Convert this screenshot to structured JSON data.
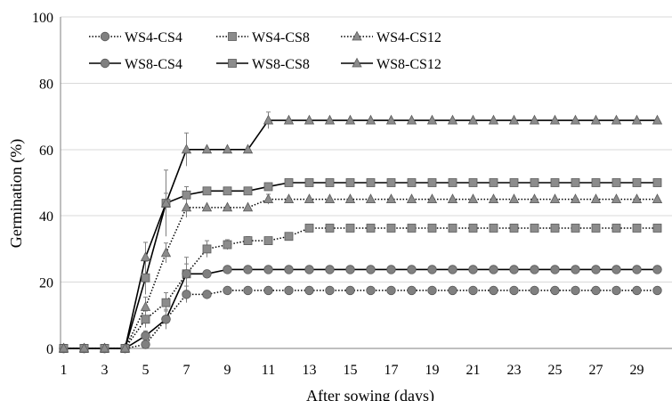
{
  "chart_data": {
    "type": "line",
    "title": "",
    "xlabel": "After sowing (days)",
    "ylabel": "Germination (%)",
    "xlim": [
      0.5,
      30.6
    ],
    "ylim": [
      0,
      100
    ],
    "yticks": [
      0,
      20,
      40,
      60,
      80,
      100
    ],
    "xticks": [
      1,
      3,
      5,
      7,
      9,
      11,
      13,
      15,
      17,
      19,
      21,
      23,
      25,
      27,
      29
    ],
    "grid": "horizontal",
    "legend_position": "top-left",
    "x": [
      1,
      2,
      3,
      4,
      5,
      6,
      7,
      8,
      9,
      10,
      11,
      12,
      13,
      14,
      15,
      16,
      17,
      18,
      19,
      20,
      21,
      22,
      23,
      24,
      25,
      26,
      27,
      28,
      29,
      30
    ],
    "series": [
      {
        "name": "WS4-CS4",
        "marker": "circle",
        "line": "dotted",
        "color": "#808080",
        "values": [
          0,
          0,
          0,
          0,
          1.2,
          8.8,
          16.3,
          16.3,
          17.5,
          17.5,
          17.5,
          17.5,
          17.5,
          17.5,
          17.5,
          17.5,
          17.5,
          17.5,
          17.5,
          17.5,
          17.5,
          17.5,
          17.5,
          17.5,
          17.5,
          17.5,
          17.5,
          17.5,
          17.5,
          17.5
        ],
        "errors": [
          0,
          0,
          0,
          0,
          0.8,
          2.5,
          2.5,
          0,
          0,
          0,
          0,
          0,
          0,
          0,
          0,
          0,
          0,
          0,
          0,
          0,
          0,
          0,
          0,
          0,
          0,
          0,
          0,
          0,
          0,
          0
        ]
      },
      {
        "name": "WS4-CS8",
        "marker": "square",
        "line": "dotted",
        "color": "#8c8c8c",
        "values": [
          0,
          0,
          0,
          0,
          8.8,
          13.8,
          22.5,
          30,
          31.3,
          32.5,
          32.5,
          33.8,
          36.3,
          36.3,
          36.3,
          36.3,
          36.3,
          36.3,
          36.3,
          36.3,
          36.3,
          36.3,
          36.3,
          36.3,
          36.3,
          36.3,
          36.3,
          36.3,
          36.3,
          36.3
        ],
        "errors": [
          0,
          0,
          0,
          0,
          2.5,
          3,
          3,
          2.5,
          1.5,
          1.2,
          0,
          0,
          0,
          0,
          0,
          0,
          0,
          0,
          0,
          0,
          0,
          0,
          0,
          0,
          0,
          0,
          0,
          0,
          0,
          0
        ]
      },
      {
        "name": "WS4-CS12",
        "marker": "triangle",
        "line": "dotted",
        "color": "#8c8c8c",
        "values": [
          0,
          0,
          0,
          0,
          12.5,
          28.8,
          42.5,
          42.5,
          42.5,
          42.5,
          45,
          45,
          45,
          45,
          45,
          45,
          45,
          45,
          45,
          45,
          45,
          45,
          45,
          45,
          45,
          45,
          45,
          45,
          45,
          45
        ],
        "errors": [
          0,
          0,
          0,
          0,
          3,
          3,
          3,
          0,
          0,
          0,
          1.5,
          0,
          0,
          0,
          0,
          0,
          0,
          0,
          0,
          0,
          0,
          0,
          0,
          0,
          0,
          0,
          0,
          0,
          0,
          0
        ]
      },
      {
        "name": "WS8-CS4",
        "marker": "circle",
        "line": "solid",
        "color": "#808080",
        "values": [
          0,
          0,
          0,
          0,
          3.8,
          8.8,
          22.5,
          22.5,
          23.8,
          23.8,
          23.8,
          23.8,
          23.8,
          23.8,
          23.8,
          23.8,
          23.8,
          23.8,
          23.8,
          23.8,
          23.8,
          23.8,
          23.8,
          23.8,
          23.8,
          23.8,
          23.8,
          23.8,
          23.8,
          23.8
        ],
        "errors": [
          0,
          0,
          0,
          0,
          1.5,
          3,
          5,
          0,
          0,
          0,
          0,
          0,
          0,
          0,
          0,
          0,
          0,
          0,
          0,
          0,
          0,
          0,
          0,
          0,
          0,
          0,
          0,
          0,
          0,
          0
        ]
      },
      {
        "name": "WS8-CS8",
        "marker": "square",
        "line": "solid",
        "color": "#8c8c8c",
        "values": [
          0,
          0,
          0,
          0,
          21.3,
          43.8,
          46.3,
          47.5,
          47.5,
          47.5,
          48.8,
          50,
          50,
          50,
          50,
          50,
          50,
          50,
          50,
          50,
          50,
          50,
          50,
          50,
          50,
          50,
          50,
          50,
          50,
          50
        ],
        "errors": [
          0,
          0,
          0,
          0,
          5,
          10,
          2.5,
          0,
          0,
          0,
          0,
          0,
          0,
          0,
          0,
          0,
          0,
          0,
          0,
          0,
          0,
          0,
          0,
          0,
          0,
          0,
          0,
          0,
          0,
          0
        ]
      },
      {
        "name": "WS8-CS12",
        "marker": "triangle",
        "line": "solid",
        "color": "#8c8c8c",
        "values": [
          0,
          0,
          0,
          0,
          27.5,
          43.8,
          60,
          60,
          60,
          60,
          68.8,
          68.8,
          68.8,
          68.8,
          68.8,
          68.8,
          68.8,
          68.8,
          68.8,
          68.8,
          68.8,
          68.8,
          68.8,
          68.8,
          68.8,
          68.8,
          68.8,
          68.8,
          68.8,
          68.8
        ],
        "errors": [
          0,
          0,
          0,
          0,
          4.5,
          3,
          5,
          0,
          0,
          0,
          2.5,
          0,
          0,
          0,
          0,
          0,
          0,
          0,
          0,
          0,
          0,
          0,
          0,
          0,
          0,
          0,
          0,
          0,
          0,
          0
        ]
      }
    ]
  }
}
